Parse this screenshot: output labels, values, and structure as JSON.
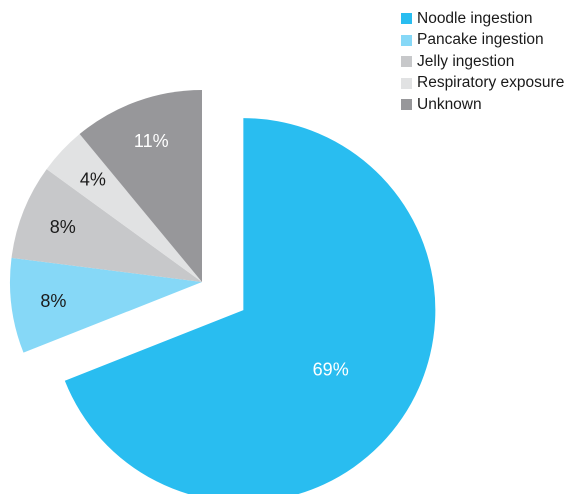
{
  "chart_data": {
    "type": "pie",
    "categories": [
      "Noodle ingestion",
      "Pancake ingestion",
      "Jelly ingestion",
      "Respiratory exposure",
      "Unknown"
    ],
    "values": [
      69,
      8,
      8,
      4,
      11
    ],
    "labels": [
      "69%",
      "8%",
      "8%",
      "4%",
      "11%"
    ],
    "colors": [
      "#29bdf0",
      "#86d8f7",
      "#c7c8ca",
      "#e1e2e3",
      "#97979a"
    ],
    "label_colors": [
      "#ffffff",
      "#1a1a1a",
      "#1a1a1a",
      "#1a1a1a",
      "#ffffff"
    ],
    "exploded": "Noodle ingestion",
    "legend_position": "top-right"
  }
}
